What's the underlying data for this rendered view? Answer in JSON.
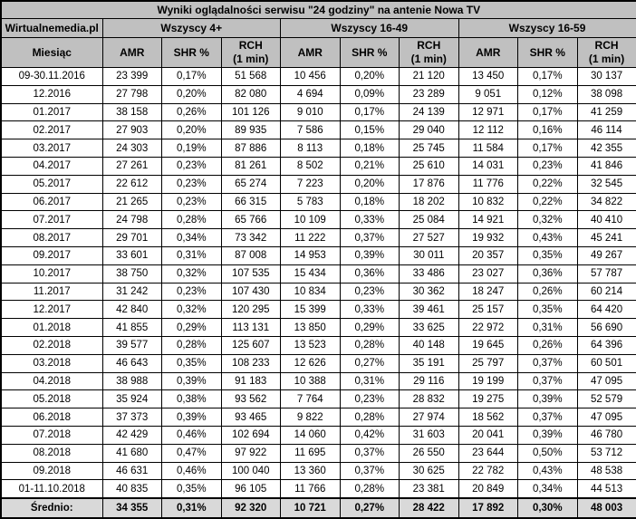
{
  "title": "Wyniki oglądalności serwisu \"24 godziny\" na antenie Nowa TV",
  "source_label": "Wirtualnemedia.pl",
  "groups": [
    {
      "label": "Wszyscy 4+"
    },
    {
      "label": "Wszyscy 16-49"
    },
    {
      "label": "Wszyscy 16-59"
    }
  ],
  "columns": {
    "month": "Miesiąc",
    "amr": "AMR",
    "shr": "SHR %",
    "rch_line1": "RCH",
    "rch_line2": "(1 min)"
  },
  "rows": [
    {
      "month": "09-30.11.2016",
      "values": [
        "23 399",
        "0,17%",
        "51 568",
        "10 456",
        "0,20%",
        "21 120",
        "13 450",
        "0,17%",
        "30 137"
      ]
    },
    {
      "month": "12.2016",
      "values": [
        "27 798",
        "0,20%",
        "82 080",
        "4 694",
        "0,09%",
        "23 289",
        "9 051",
        "0,12%",
        "38 098"
      ]
    },
    {
      "month": "01.2017",
      "values": [
        "38 158",
        "0,26%",
        "101 126",
        "9 010",
        "0,17%",
        "24 139",
        "12 971",
        "0,17%",
        "41 259"
      ]
    },
    {
      "month": "02.2017",
      "values": [
        "27 903",
        "0,20%",
        "89 935",
        "7 586",
        "0,15%",
        "29 040",
        "12 112",
        "0,16%",
        "46 114"
      ]
    },
    {
      "month": "03.2017",
      "values": [
        "24 303",
        "0,19%",
        "87 886",
        "8 113",
        "0,18%",
        "25 745",
        "11 584",
        "0,17%",
        "42 355"
      ]
    },
    {
      "month": "04.2017",
      "values": [
        "27 261",
        "0,23%",
        "81 261",
        "8 502",
        "0,21%",
        "25 610",
        "14 031",
        "0,23%",
        "41 846"
      ]
    },
    {
      "month": "05.2017",
      "values": [
        "22 612",
        "0,23%",
        "65 274",
        "7 223",
        "0,20%",
        "17 876",
        "11 776",
        "0,22%",
        "32 545"
      ]
    },
    {
      "month": "06.2017",
      "values": [
        "21 265",
        "0,23%",
        "66 315",
        "5 783",
        "0,18%",
        "18 202",
        "10 832",
        "0,22%",
        "34 822"
      ]
    },
    {
      "month": "07.2017",
      "values": [
        "24 798",
        "0,28%",
        "65 766",
        "10 109",
        "0,33%",
        "25 084",
        "14 921",
        "0,32%",
        "40 410"
      ]
    },
    {
      "month": "08.2017",
      "values": [
        "29 701",
        "0,34%",
        "73 342",
        "11 222",
        "0,37%",
        "27 527",
        "19 932",
        "0,43%",
        "45 241"
      ]
    },
    {
      "month": "09.2017",
      "values": [
        "33 601",
        "0,31%",
        "87 008",
        "14 953",
        "0,39%",
        "30 011",
        "20 357",
        "0,35%",
        "49 267"
      ]
    },
    {
      "month": "10.2017",
      "values": [
        "38 750",
        "0,32%",
        "107 535",
        "15 434",
        "0,36%",
        "33 486",
        "23 027",
        "0,36%",
        "57 787"
      ]
    },
    {
      "month": "11.2017",
      "values": [
        "31 242",
        "0,23%",
        "107 430",
        "10 834",
        "0,23%",
        "30 362",
        "18 247",
        "0,26%",
        "60 214"
      ]
    },
    {
      "month": "12.2017",
      "values": [
        "42 840",
        "0,32%",
        "120 295",
        "15 399",
        "0,33%",
        "39 461",
        "25 157",
        "0,35%",
        "64 420"
      ]
    },
    {
      "month": "01.2018",
      "values": [
        "41 855",
        "0,29%",
        "113 131",
        "13 850",
        "0,29%",
        "33 625",
        "22 972",
        "0,31%",
        "56 690"
      ]
    },
    {
      "month": "02.2018",
      "values": [
        "39 577",
        "0,28%",
        "125 607",
        "13 523",
        "0,28%",
        "40 148",
        "19 645",
        "0,26%",
        "64 396"
      ]
    },
    {
      "month": "03.2018",
      "values": [
        "46 643",
        "0,35%",
        "108 233",
        "12 626",
        "0,27%",
        "35 191",
        "25 797",
        "0,37%",
        "60 501"
      ]
    },
    {
      "month": "04.2018",
      "values": [
        "38 988",
        "0,39%",
        "91 183",
        "10 388",
        "0,31%",
        "29 116",
        "19 199",
        "0,37%",
        "47 095"
      ]
    },
    {
      "month": "05.2018",
      "values": [
        "35 924",
        "0,38%",
        "93 562",
        "7 764",
        "0,23%",
        "28 832",
        "19 275",
        "0,39%",
        "52 579"
      ]
    },
    {
      "month": "06.2018",
      "values": [
        "37 373",
        "0,39%",
        "93 465",
        "9 822",
        "0,28%",
        "27 974",
        "18 562",
        "0,37%",
        "47 095"
      ]
    },
    {
      "month": "07.2018",
      "values": [
        "42 429",
        "0,46%",
        "102 694",
        "14 060",
        "0,42%",
        "31 603",
        "20 041",
        "0,39%",
        "46 780"
      ]
    },
    {
      "month": "08.2018",
      "values": [
        "41 680",
        "0,47%",
        "97 922",
        "11 695",
        "0,37%",
        "26 550",
        "23 644",
        "0,50%",
        "53 712"
      ]
    },
    {
      "month": "09.2018",
      "values": [
        "46 631",
        "0,46%",
        "100 040",
        "13 360",
        "0,37%",
        "30 625",
        "22 782",
        "0,43%",
        "48 538"
      ]
    },
    {
      "month": "01-11.10.2018",
      "values": [
        "40 835",
        "0,35%",
        "96 105",
        "11 766",
        "0,28%",
        "23 381",
        "20 849",
        "0,34%",
        "44 513"
      ]
    }
  ],
  "average_row": {
    "label": "Średnio:",
    "values": [
      "34 355",
      "0,31%",
      "92 320",
      "10 721",
      "0,27%",
      "28 422",
      "17 892",
      "0,30%",
      "48 003"
    ]
  },
  "colors": {
    "header_bg": "#c0c0c0",
    "average_bg": "#d9d9d9",
    "data_bg": "#ffffff",
    "border": "#000000",
    "text": "#000000"
  }
}
